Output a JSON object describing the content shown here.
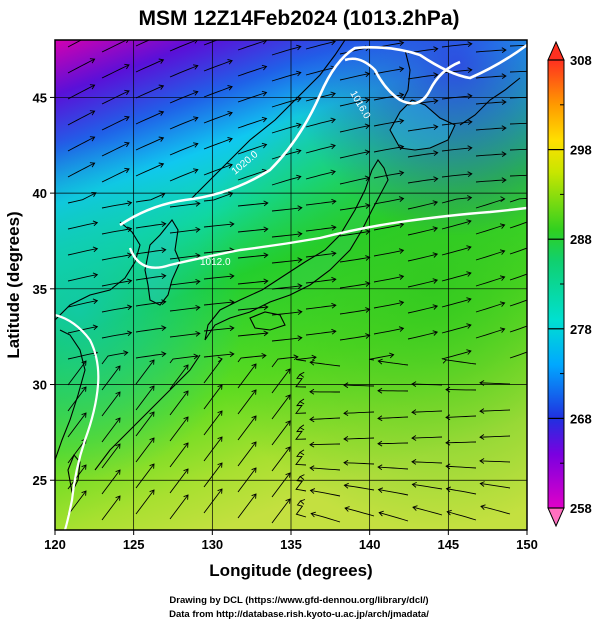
{
  "title": "MSM 12Z14Feb2024 (1013.2hPa)",
  "map": {
    "xlabel": "Longitude (degrees)",
    "ylabel": "Latitude  (degrees)",
    "lon_range": [
      120,
      150
    ],
    "lat_range": [
      22.4,
      48
    ],
    "lon_ticks": [
      120,
      125,
      130,
      135,
      140,
      145,
      150
    ],
    "lat_ticks": [
      25,
      30,
      35,
      40,
      45
    ],
    "grid": true
  },
  "colorbar": {
    "range": [
      258,
      308
    ],
    "ticks": [
      258,
      268,
      278,
      288,
      298,
      308
    ],
    "colors": {
      "high": "#ff3b2f",
      "mid": "#3ad93a",
      "low": "#e000d0"
    }
  },
  "contour_labels": [
    "1016.0",
    "1012.0",
    "1020.0"
  ],
  "footer": {
    "line1": "Drawing by DCL (https://www.gfd-dennou.org/library/dcl/)",
    "line2": "Data from http://database.rish.kyoto-u.ac.jp/arch/jmadata/"
  }
}
